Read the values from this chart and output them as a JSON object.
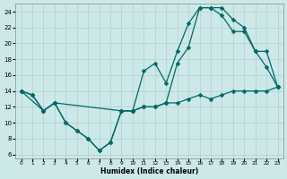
{
  "xlabel": "Humidex (Indice chaleur)",
  "bg_color": "#cde8e8",
  "grid_color": "#b0d0d0",
  "line_color": "#006868",
  "markersize": 2.5,
  "linewidth": 0.9,
  "xlim": [
    -0.5,
    23.5
  ],
  "ylim": [
    5.5,
    25.0
  ],
  "xticks": [
    0,
    1,
    2,
    3,
    4,
    5,
    6,
    7,
    8,
    9,
    10,
    11,
    12,
    13,
    14,
    15,
    16,
    17,
    18,
    19,
    20,
    21,
    22,
    23
  ],
  "yticks": [
    6,
    8,
    10,
    12,
    14,
    16,
    18,
    20,
    22,
    24
  ],
  "line1_x": [
    0,
    1,
    2,
    3,
    4,
    5,
    6,
    7,
    8,
    9,
    10,
    11,
    12,
    13,
    14,
    15,
    16,
    17,
    18,
    19,
    20,
    21,
    22,
    23
  ],
  "line1_y": [
    14.0,
    13.5,
    11.5,
    12.5,
    10.0,
    9.0,
    8.0,
    6.5,
    7.5,
    11.5,
    11.5,
    16.5,
    17.5,
    15.0,
    19.0,
    22.5,
    24.5,
    24.5,
    23.5,
    21.5,
    21.5,
    19.0,
    19.0,
    14.5
  ],
  "line2_x": [
    0,
    2,
    3,
    9,
    10,
    11,
    12,
    13,
    14,
    15,
    16,
    17,
    18,
    19,
    20,
    21,
    22,
    23
  ],
  "line2_y": [
    14.0,
    11.5,
    12.5,
    11.5,
    11.5,
    12.0,
    12.0,
    12.5,
    17.5,
    19.5,
    24.5,
    24.5,
    24.5,
    23.0,
    22.0,
    19.0,
    17.0,
    14.5
  ],
  "line3_x": [
    0,
    1,
    2,
    3,
    4,
    5,
    6,
    7,
    8,
    9,
    10,
    11,
    12,
    13,
    14,
    15,
    16,
    17,
    18,
    19,
    20,
    21,
    22,
    23
  ],
  "line3_y": [
    14.0,
    13.5,
    11.5,
    12.5,
    10.0,
    9.0,
    8.0,
    6.5,
    7.5,
    11.5,
    11.5,
    12.0,
    12.0,
    12.5,
    12.5,
    13.0,
    13.5,
    13.0,
    13.5,
    14.0,
    14.0,
    14.0,
    14.0,
    14.5
  ]
}
